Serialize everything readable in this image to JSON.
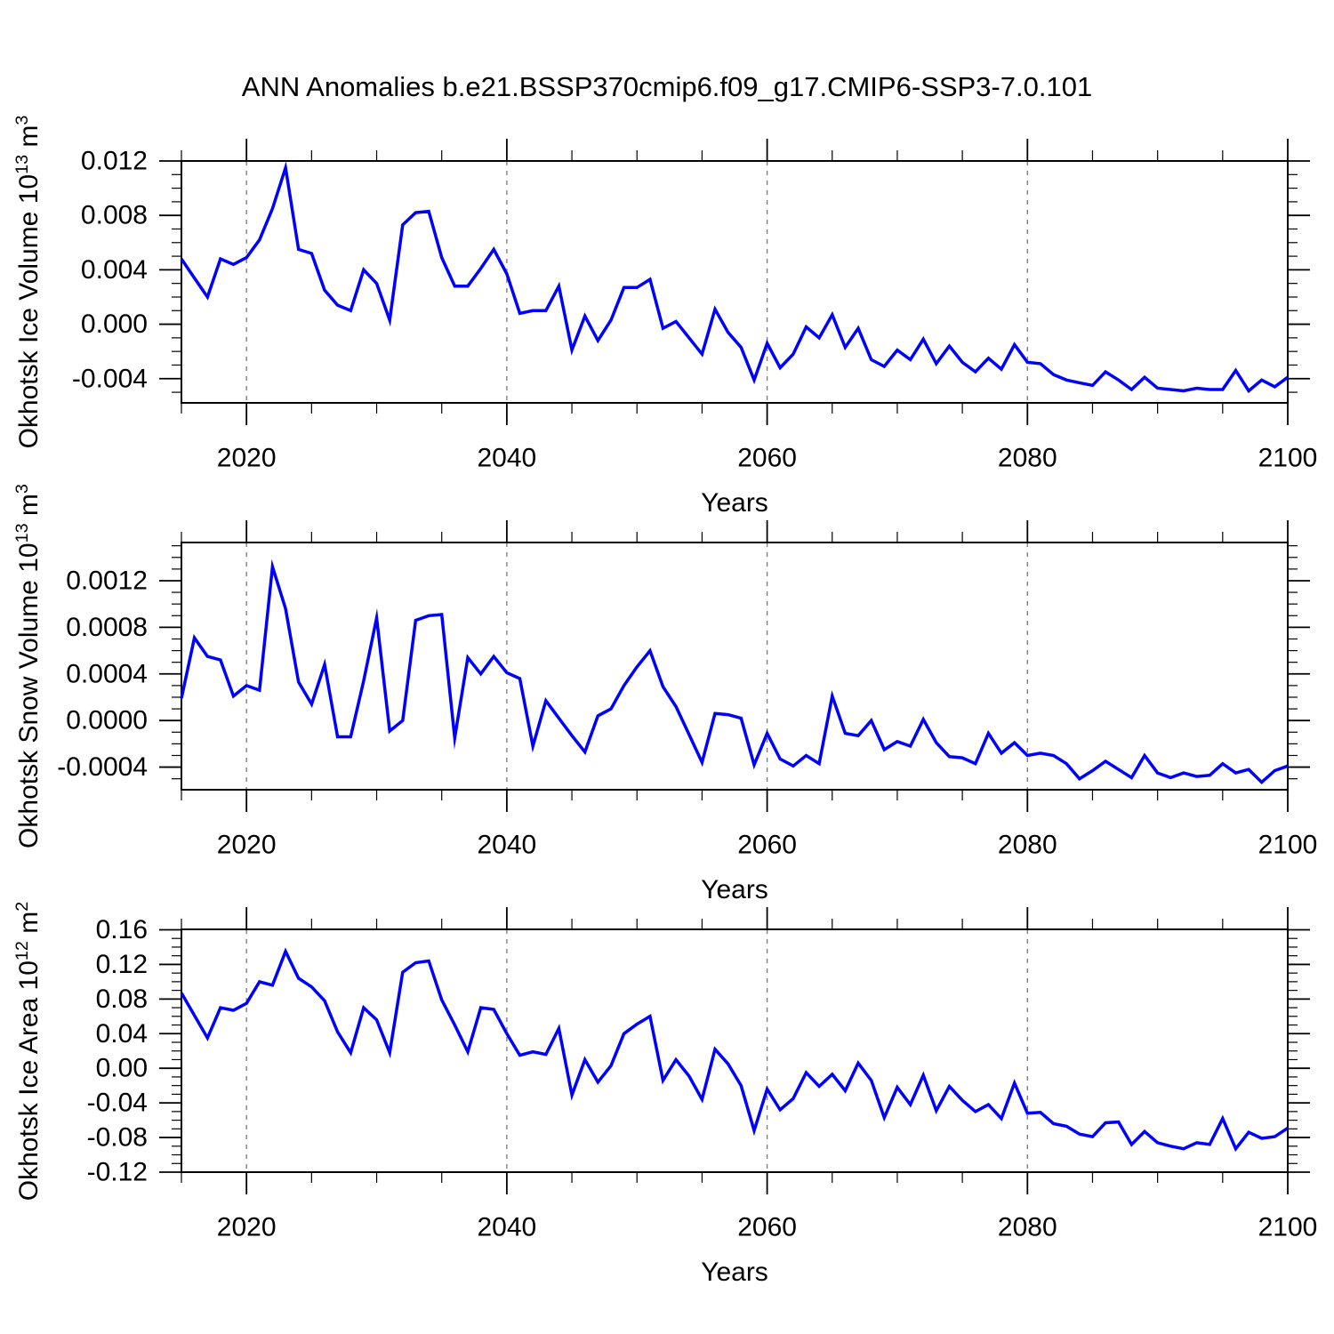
{
  "page": {
    "title": "ANN Anomalies b.e21.BSSP370cmip6.f09_g17.CMIP6-SSP3-7.0.101",
    "background": "#ffffff"
  },
  "chart_data": [
    {
      "type": "line",
      "id": "ice_volume",
      "ylabel_segments": [
        [
          "t",
          "Okhotsk Ice Volume 10"
        ],
        [
          "s",
          "13"
        ],
        [
          "t",
          " m"
        ],
        [
          "s",
          "3"
        ]
      ],
      "xlabel": "Years",
      "x_start": 2015,
      "x_step": 1,
      "xlim": [
        2015,
        2100
      ],
      "ylim": [
        -0.00578,
        0.012
      ],
      "xticks": {
        "major": [
          2020,
          2040,
          2060,
          2080,
          2100
        ],
        "labels": [
          "2020",
          "2040",
          "2060",
          "2080",
          "2100"
        ],
        "minor_step": 5
      },
      "yticks": {
        "major": [
          0.012,
          0.008,
          0.004,
          0.0,
          -0.004
        ],
        "labels": [
          "0.012",
          "0.008",
          "0.004",
          "0.000",
          "-0.004"
        ],
        "minor_step": 0.001
      },
      "gridlines_x": [
        2020,
        2040,
        2060,
        2080
      ],
      "line_color": "#0000ff",
      "grid_color": "#808080",
      "frame_color": "#000000",
      "legend": "none",
      "grid": "dashed-vertical-only",
      "values": [
        0.0048,
        0.0034,
        0.002,
        0.0048,
        0.0044,
        0.0049,
        0.0062,
        0.0085,
        0.0115,
        0.0055,
        0.0052,
        0.0025,
        0.0014,
        0.001,
        0.004,
        0.003,
        0.0003,
        0.0073,
        0.0082,
        0.0083,
        0.0049,
        0.0028,
        0.0028,
        0.0041,
        0.0055,
        0.0037,
        0.0008,
        0.001,
        0.001,
        0.0028,
        -0.0019,
        0.0006,
        -0.0012,
        0.0003,
        0.0027,
        0.0027,
        0.0033,
        -0.0003,
        0.0002,
        -0.001,
        -0.0022,
        0.0011,
        -0.0006,
        -0.0017,
        -0.0041,
        -0.0014,
        -0.0032,
        -0.0022,
        -0.0002,
        -0.001,
        0.0007,
        -0.0017,
        -0.0003,
        -0.0026,
        -0.0031,
        -0.0019,
        -0.0026,
        -0.0011,
        -0.0029,
        -0.0016,
        -0.0028,
        -0.0035,
        -0.0025,
        -0.0033,
        -0.0015,
        -0.0028,
        -0.0029,
        -0.0037,
        -0.0041,
        -0.0043,
        -0.0045,
        -0.0035,
        -0.0041,
        -0.0048,
        -0.0039,
        -0.0047,
        -0.0048,
        -0.0049,
        -0.0047,
        -0.0048,
        -0.0048,
        -0.0034,
        -0.0049,
        -0.0041,
        -0.0046,
        -0.0039
      ]
    },
    {
      "type": "line",
      "id": "snow_volume",
      "ylabel_segments": [
        [
          "t",
          "Okhotsk Snow Volume 10"
        ],
        [
          "s",
          "13"
        ],
        [
          "t",
          " m"
        ],
        [
          "s",
          "3"
        ]
      ],
      "xlabel": "Years",
      "x_start": 2015,
      "x_step": 1,
      "xlim": [
        2015,
        2100
      ],
      "ylim": [
        -0.000594,
        0.001528
      ],
      "xticks": {
        "major": [
          2020,
          2040,
          2060,
          2080,
          2100
        ],
        "labels": [
          "2020",
          "2040",
          "2060",
          "2080",
          "2100"
        ],
        "minor_step": 5
      },
      "yticks": {
        "major": [
          0.0012,
          0.0008,
          0.0004,
          0.0,
          -0.0004
        ],
        "labels": [
          "0.0012",
          "0.0008",
          "0.0004",
          "0.0000",
          "-0.0004"
        ],
        "minor_step": 0.0001
      },
      "gridlines_x": [
        2020,
        2040,
        2060,
        2080
      ],
      "line_color": "#0000ff",
      "grid_color": "#808080",
      "frame_color": "#000000",
      "legend": "none",
      "grid": "dashed-vertical-only",
      "values": [
        0.00019,
        0.00071,
        0.00055,
        0.00052,
        0.00021,
        0.0003,
        0.00026,
        0.00132,
        0.00096,
        0.00033,
        0.00014,
        0.00048,
        -0.00014,
        -0.00014,
        0.00034,
        0.00088,
        -9e-05,
        0.0,
        0.00086,
        0.0009,
        0.00091,
        -0.00015,
        0.00054,
        0.0004,
        0.00055,
        0.00041,
        0.00036,
        -0.00022,
        0.00017,
        2e-05,
        -0.00013,
        -0.00027,
        4e-05,
        0.0001,
        0.0003,
        0.00046,
        0.0006,
        0.00029,
        0.00012,
        -0.00012,
        -0.00036,
        6e-05,
        5e-05,
        2e-05,
        -0.00038,
        -0.00011,
        -0.00033,
        -0.00039,
        -0.0003,
        -0.00037,
        0.00021,
        -0.00011,
        -0.00013,
        0.0,
        -0.00025,
        -0.00018,
        -0.00022,
        1e-05,
        -0.00019,
        -0.00031,
        -0.00032,
        -0.00037,
        -0.00011,
        -0.00028,
        -0.00019,
        -0.0003,
        -0.00028,
        -0.0003,
        -0.00037,
        -0.0005,
        -0.00043,
        -0.00035,
        -0.00042,
        -0.00049,
        -0.0003,
        -0.00045,
        -0.00049,
        -0.00045,
        -0.00048,
        -0.00047,
        -0.00037,
        -0.00045,
        -0.00042,
        -0.00053,
        -0.00043,
        -0.00039
      ]
    },
    {
      "type": "line",
      "id": "ice_area",
      "ylabel_segments": [
        [
          "t",
          "Okhotsk Ice Area 10"
        ],
        [
          "s",
          "12"
        ],
        [
          "t",
          " m"
        ],
        [
          "s",
          "2"
        ]
      ],
      "xlabel": "Years",
      "x_start": 2015,
      "x_step": 1,
      "xlim": [
        2015,
        2100
      ],
      "ylim": [
        -0.12,
        0.1605
      ],
      "xticks": {
        "major": [
          2020,
          2040,
          2060,
          2080,
          2100
        ],
        "labels": [
          "2020",
          "2040",
          "2060",
          "2080",
          "2100"
        ],
        "minor_step": 5
      },
      "yticks": {
        "major": [
          0.16,
          0.12,
          0.08,
          0.04,
          0.0,
          -0.04,
          -0.08,
          -0.12
        ],
        "labels": [
          "0.16",
          "0.12",
          "0.08",
          "0.04",
          "0.00",
          "-0.04",
          "-0.08",
          "-0.12"
        ],
        "minor_step": 0.01
      },
      "gridlines_x": [
        2020,
        2040,
        2060,
        2080
      ],
      "line_color": "#0000ff",
      "grid_color": "#808080",
      "frame_color": "#000000",
      "legend": "none",
      "grid": "dashed-vertical-only",
      "values": [
        0.087,
        0.061,
        0.035,
        0.07,
        0.067,
        0.075,
        0.1,
        0.096,
        0.135,
        0.104,
        0.094,
        0.078,
        0.042,
        0.018,
        0.07,
        0.056,
        0.018,
        0.111,
        0.122,
        0.124,
        0.079,
        0.05,
        0.019,
        0.07,
        0.068,
        0.04,
        0.015,
        0.019,
        0.016,
        0.046,
        -0.031,
        0.01,
        -0.016,
        0.003,
        0.04,
        0.051,
        0.06,
        -0.014,
        0.01,
        -0.009,
        -0.036,
        0.022,
        0.005,
        -0.02,
        -0.072,
        -0.024,
        -0.048,
        -0.035,
        -0.005,
        -0.021,
        -0.007,
        -0.026,
        0.006,
        -0.014,
        -0.057,
        -0.022,
        -0.042,
        -0.008,
        -0.049,
        -0.021,
        -0.037,
        -0.05,
        -0.042,
        -0.058,
        -0.017,
        -0.052,
        -0.051,
        -0.064,
        -0.067,
        -0.076,
        -0.079,
        -0.063,
        -0.062,
        -0.088,
        -0.073,
        -0.086,
        -0.09,
        -0.093,
        -0.086,
        -0.088,
        -0.058,
        -0.093,
        -0.074,
        -0.081,
        -0.079,
        -0.069
      ]
    }
  ]
}
